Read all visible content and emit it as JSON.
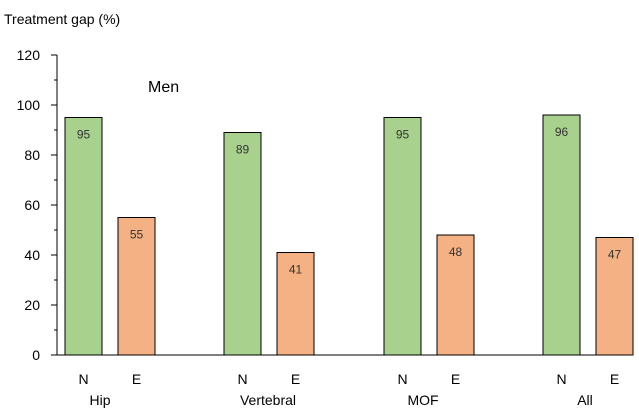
{
  "chart_data": {
    "type": "bar",
    "title": "Men",
    "ylabel": "Treatment gap (%)",
    "ylim": [
      0,
      120
    ],
    "yticks": [
      0,
      20,
      40,
      60,
      80,
      100,
      120
    ],
    "grid": false,
    "groups": [
      {
        "label": "Hip",
        "bars": [
          {
            "label": "N",
            "value": 95,
            "color": "#a9d18e"
          },
          {
            "label": "E",
            "value": 55,
            "color": "#f4b183"
          }
        ]
      },
      {
        "label": "Vertebral",
        "bars": [
          {
            "label": "N",
            "value": 89,
            "color": "#a9d18e"
          },
          {
            "label": "E",
            "value": 41,
            "color": "#f4b183"
          }
        ]
      },
      {
        "label": "MOF",
        "bars": [
          {
            "label": "N",
            "value": 95,
            "color": "#a9d18e"
          },
          {
            "label": "E",
            "value": 48,
            "color": "#f4b183"
          }
        ]
      },
      {
        "label": "All",
        "bars": [
          {
            "label": "N",
            "value": 96,
            "color": "#a9d18e"
          },
          {
            "label": "E",
            "value": 47,
            "color": "#f4b183"
          }
        ]
      }
    ]
  }
}
